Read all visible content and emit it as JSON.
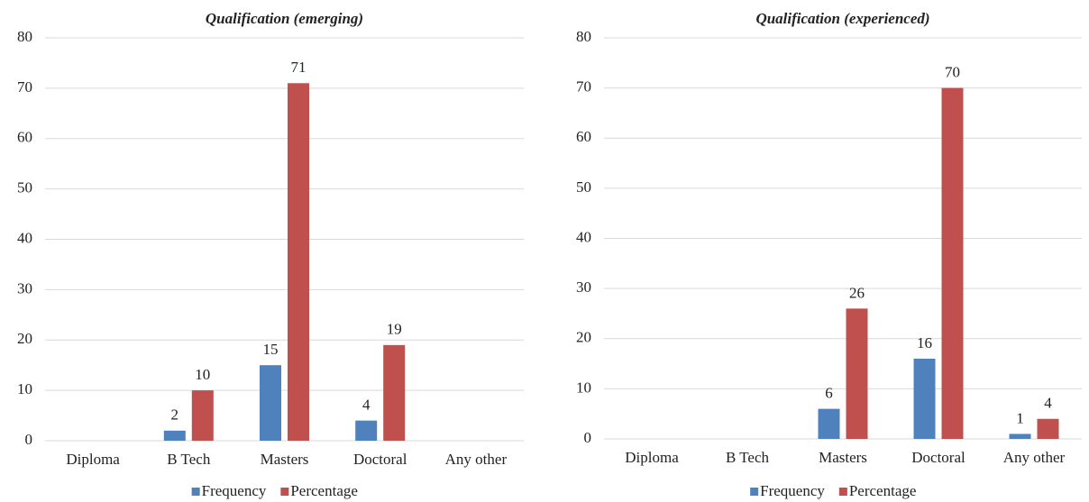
{
  "chart_data": [
    {
      "type": "bar",
      "title": "Qualification (emerging)",
      "categories": [
        "Diploma",
        "B Tech",
        "Masters",
        "Doctoral",
        "Any other"
      ],
      "series": [
        {
          "name": "Frequency",
          "color": "#4f81bd",
          "values": [
            null,
            2,
            15,
            4,
            null
          ]
        },
        {
          "name": "Percentage",
          "color": "#c0504d",
          "values": [
            null,
            10,
            71,
            19,
            null
          ]
        }
      ],
      "ylim": [
        0,
        80
      ],
      "yticks": [
        0,
        10,
        20,
        30,
        40,
        50,
        60,
        70,
        80
      ],
      "grid": true,
      "legend": "bottom"
    },
    {
      "type": "bar",
      "title": "Qualification (experienced)",
      "categories": [
        "Diploma",
        "B Tech",
        "Masters",
        "Doctoral",
        "Any other"
      ],
      "series": [
        {
          "name": "Frequency",
          "color": "#4f81bd",
          "values": [
            null,
            null,
            6,
            16,
            1
          ]
        },
        {
          "name": "Percentage",
          "color": "#c0504d",
          "values": [
            null,
            null,
            26,
            70,
            4
          ]
        }
      ],
      "ylim": [
        0,
        80
      ],
      "yticks": [
        0,
        10,
        20,
        30,
        40,
        50,
        60,
        70,
        80
      ],
      "grid": true,
      "legend": "bottom"
    }
  ]
}
